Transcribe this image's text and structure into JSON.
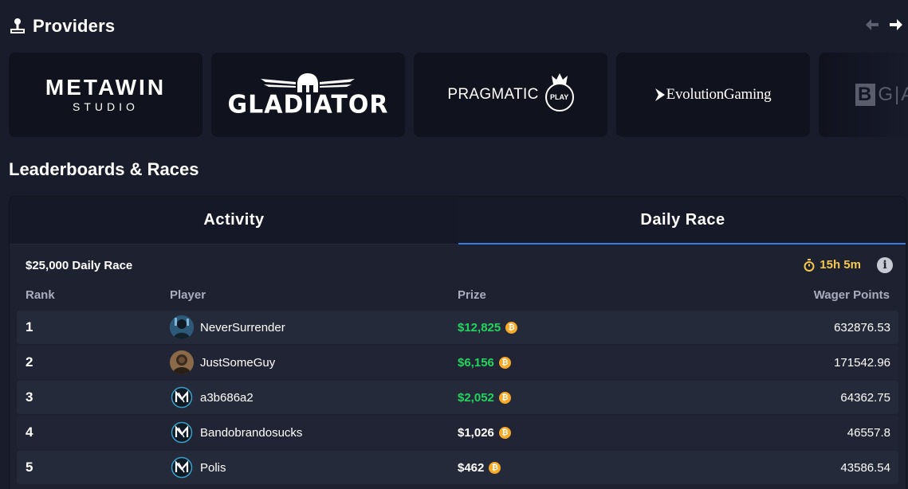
{
  "providers": {
    "title": "Providers",
    "icon": "joystick-icon",
    "cards": [
      {
        "name": "metawin",
        "line1": "METAWIN",
        "line2": "STUDIO"
      },
      {
        "name": "gladiator",
        "word": "GLADIATOR"
      },
      {
        "name": "pragmatic",
        "word": "PRAGMATIC",
        "badge": "PLAY"
      },
      {
        "name": "evolution",
        "word": "EvolutionGaming"
      },
      {
        "name": "bga",
        "box": "B",
        "rest": "G|A"
      }
    ]
  },
  "leaderboards": {
    "title": "Leaderboards & Races",
    "tabs": [
      {
        "label": "Activity",
        "active": false
      },
      {
        "label": "Daily Race",
        "active": true
      }
    ],
    "race_name": "$25,000 Daily Race",
    "timer": "15h 5m",
    "columns": {
      "rank": "Rank",
      "player": "Player",
      "prize": "Prize",
      "wager": "Wager Points"
    },
    "rows": [
      {
        "rank": "1",
        "player": "NeverSurrender",
        "prize": "$12,825",
        "wager": "632876.53",
        "avatar": "photo"
      },
      {
        "rank": "2",
        "player": "JustSomeGuy",
        "prize": "$6,156",
        "wager": "171542.96",
        "avatar": "photo"
      },
      {
        "rank": "3",
        "player": "a3b686a2",
        "prize": "$2,052",
        "wager": "64362.75",
        "avatar": "metawin-logo"
      },
      {
        "rank": "4",
        "player": "Bandobrandosucks",
        "prize": "$1,026",
        "wager": "46557.8",
        "avatar": "metawin-logo"
      },
      {
        "rank": "5",
        "player": "Polis",
        "prize": "$462",
        "wager": "43586.54",
        "avatar": "metawin-logo"
      }
    ]
  },
  "colors": {
    "background": "#191c2b",
    "card": "#10121d",
    "accent_blue": "#3b7be8",
    "prize_green": "#22d45d",
    "timer_yellow": "#f5c84b",
    "coin_orange": "#f7a928"
  }
}
